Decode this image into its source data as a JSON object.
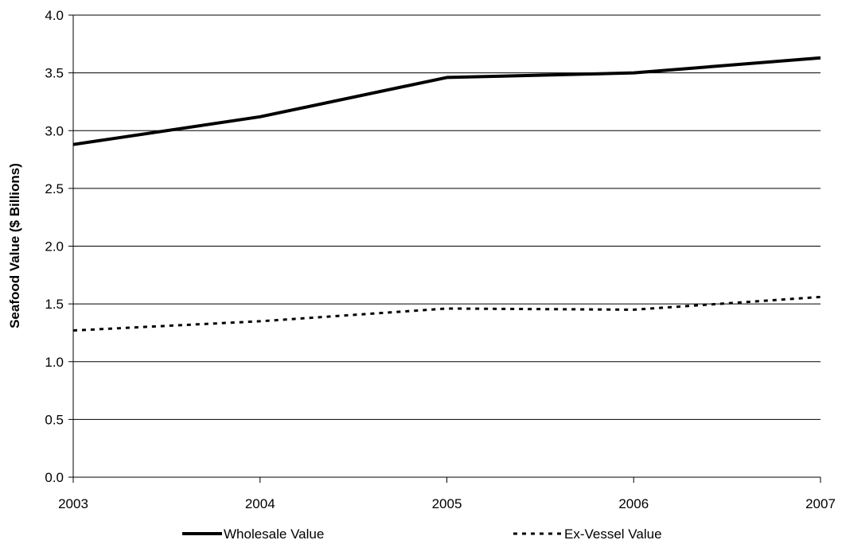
{
  "chart_data": {
    "type": "line",
    "title": "",
    "xlabel": "",
    "ylabel": "Seafood Value ($ Billions)",
    "x": [
      "2003",
      "2004",
      "2005",
      "2006",
      "2007"
    ],
    "ylim": [
      0,
      4.0
    ],
    "yticks": [
      "0.0",
      "0.5",
      "1.0",
      "1.5",
      "2.0",
      "2.5",
      "3.0",
      "3.5",
      "4.0"
    ],
    "grid": "horizontal",
    "legend_position": "bottom",
    "series": [
      {
        "name": "Wholesale Value",
        "values": [
          2.88,
          3.12,
          3.46,
          3.5,
          3.63
        ],
        "style": "solid",
        "color": "#000000"
      },
      {
        "name": "Ex-Vessel Value",
        "values": [
          1.27,
          1.35,
          1.46,
          1.45,
          1.56
        ],
        "style": "dotted",
        "color": "#000000"
      }
    ]
  }
}
